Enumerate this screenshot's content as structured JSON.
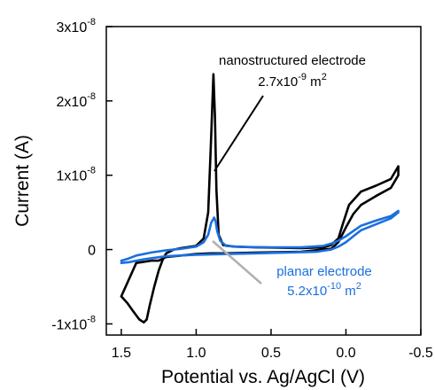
{
  "chart_data": {
    "type": "line",
    "title": "",
    "xlabel": "Potential vs. Ag/AgCl (V)",
    "ylabel": "Current (A)",
    "xlim": [
      1.6,
      -0.5
    ],
    "x_reversed": true,
    "ylim": [
      -1.15e-08,
      3e-08
    ],
    "x_ticks": [
      1.5,
      1.0,
      0.5,
      0.0,
      -0.5
    ],
    "x_tick_labels": [
      "1.5",
      "1.0",
      "0.5",
      "0.0",
      "-0.5"
    ],
    "y_ticks": [
      -1e-08,
      0,
      1e-08,
      2e-08,
      3e-08
    ],
    "y_tick_labels": [
      {
        "mantissa": "-1x10",
        "exp": "-8"
      },
      {
        "mantissa": "0",
        "exp": ""
      },
      {
        "mantissa": "1x10",
        "exp": "-8"
      },
      {
        "mantissa": "2x10",
        "exp": "-8"
      },
      {
        "mantissa": "3x10",
        "exp": "-8"
      }
    ],
    "grid": false,
    "annotations": {
      "nano_label": "nanostructured electrode",
      "nano_area": {
        "base": "2.7x10",
        "exp": "-9",
        "unit": " m",
        "unit_exp": "2"
      },
      "planar_label": "planar electrode",
      "planar_area": {
        "base": "5.2x10",
        "exp": "-10",
        "unit": " m",
        "unit_exp": "2"
      }
    },
    "series": [
      {
        "key": "nanostructured",
        "color": "#000000",
        "x": [
          1.5,
          1.46,
          1.42,
          1.38,
          1.35,
          1.33,
          1.31,
          1.28,
          1.25,
          1.22,
          1.2,
          1.15,
          1.1,
          1.0,
          0.95,
          0.92,
          0.9,
          0.885,
          0.875,
          0.865,
          0.85,
          0.82,
          0.75,
          0.6,
          0.3,
          0.15,
          0.1,
          0.05,
          0.02,
          -0.02,
          -0.1,
          -0.2,
          -0.3,
          -0.35,
          -0.35,
          -0.3,
          -0.2,
          -0.1,
          -0.05,
          0.0,
          0.05,
          0.1,
          0.3,
          0.6,
          0.8,
          0.9,
          1.0,
          1.1,
          1.2,
          1.25,
          1.3,
          1.4,
          1.5
        ],
        "y": [
          -6.3e-09,
          -7.2e-09,
          -8.3e-09,
          -9.4e-09,
          -9.8e-09,
          -9.4e-09,
          -7.5e-09,
          -5e-09,
          -2.8e-09,
          -1.2e-09,
          -5e-10,
          0.0,
          2e-10,
          5e-10,
          1.5e-09,
          5e-09,
          1.5e-08,
          2.36e-08,
          1.8e-08,
          8e-09,
          2e-09,
          6e-10,
          4e-10,
          3e-10,
          2e-10,
          3e-10,
          6e-10,
          1.5e-09,
          3.5e-09,
          6e-09,
          7.8e-09,
          8.6e-09,
          9.5e-09,
          1.12e-08,
          1e-08,
          8.3e-09,
          7.2e-09,
          6e-09,
          4.8e-09,
          3e-09,
          1e-09,
          1e-10,
          -3e-10,
          -4e-10,
          -5e-10,
          -5e-10,
          -6e-10,
          -8e-10,
          -1e-09,
          -1.5e-09,
          -1.5e-09,
          -1.8e-09,
          -6.3e-09
        ]
      },
      {
        "key": "planar",
        "color": "#1a6fe0",
        "x": [
          1.5,
          1.45,
          1.4,
          1.3,
          1.2,
          1.1,
          1.0,
          0.95,
          0.92,
          0.9,
          0.88,
          0.87,
          0.86,
          0.84,
          0.8,
          0.7,
          0.5,
          0.3,
          0.15,
          0.1,
          0.05,
          0.0,
          -0.05,
          -0.1,
          -0.2,
          -0.3,
          -0.35,
          -0.35,
          -0.3,
          -0.2,
          -0.1,
          -0.05,
          0.0,
          0.05,
          0.1,
          0.2,
          0.4,
          0.6,
          0.8,
          1.0,
          1.2,
          1.35,
          1.45,
          1.5
        ],
        "y": [
          -1.5e-09,
          -1.2e-09,
          -8e-10,
          -4e-10,
          -1e-10,
          1e-10,
          4e-10,
          1e-09,
          2e-09,
          3.6e-09,
          4.3e-09,
          3.8e-09,
          2.5e-09,
          1.2e-09,
          5e-10,
          3.5e-10,
          3e-10,
          3e-10,
          5e-10,
          8e-10,
          1.2e-09,
          1.8e-09,
          2.5e-09,
          3.2e-09,
          3.9e-09,
          4.5e-09,
          5.2e-09,
          5e-09,
          4.2e-09,
          3.4e-09,
          2.6e-09,
          1.8e-09,
          1e-09,
          4e-10,
          0.0,
          -3e-10,
          -4e-10,
          -5e-10,
          -6e-10,
          -7e-10,
          -9e-10,
          -1.3e-09,
          -1.7e-09,
          -1.8e-09
        ]
      }
    ]
  }
}
